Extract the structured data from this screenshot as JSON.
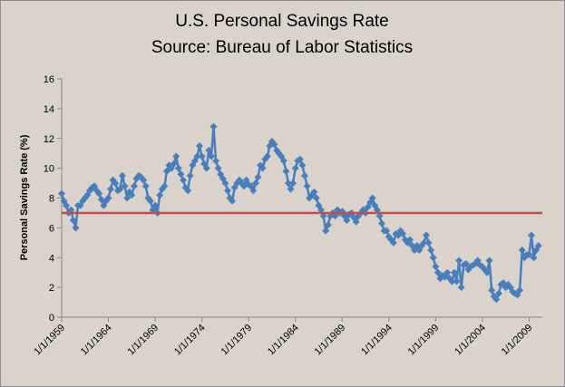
{
  "chart_data": {
    "type": "line",
    "title": [
      "U.S. Personal Savings Rate",
      "Source: Bureau of Labor Statistics"
    ],
    "y_label": "Personal Savings  Rate (%)",
    "ylim": [
      0,
      16
    ],
    "yticks": [
      0,
      2,
      4,
      6,
      8,
      10,
      12,
      14,
      16
    ],
    "xlim": [
      "1/1/1959",
      "6/1/2010"
    ],
    "xticks": [
      "1/1/1959",
      "1/1/1964",
      "1/1/1969",
      "1/1/1974",
      "1/1/1979",
      "1/1/1984",
      "1/1/1989",
      "1/1/1994",
      "1/1/1999",
      "1/1/2004",
      "1/1/2009"
    ],
    "reference_line": {
      "value": 7,
      "color": "#c0504d"
    },
    "x": [
      "1/1/1959",
      "4/1/1959",
      "7/1/1959",
      "10/1/1959",
      "1/1/1960",
      "4/1/1960",
      "7/1/1960",
      "10/1/1960",
      "1/1/1961",
      "4/1/1961",
      "7/1/1961",
      "10/1/1961",
      "1/1/1962",
      "4/1/1962",
      "7/1/1962",
      "10/1/1962",
      "1/1/1963",
      "4/1/1963",
      "7/1/1963",
      "10/1/1963",
      "1/1/1964",
      "4/1/1964",
      "7/1/1964",
      "10/1/1964",
      "1/1/1965",
      "4/1/1965",
      "7/1/1965",
      "10/1/1965",
      "1/1/1966",
      "4/1/1966",
      "7/1/1966",
      "10/1/1966",
      "1/1/1967",
      "4/1/1967",
      "7/1/1967",
      "10/1/1967",
      "1/1/1968",
      "4/1/1968",
      "7/1/1968",
      "10/1/1968",
      "1/1/1969",
      "4/1/1969",
      "7/1/1969",
      "10/1/1969",
      "1/1/1970",
      "4/1/1970",
      "7/1/1970",
      "10/1/1970",
      "1/1/1971",
      "4/1/1971",
      "7/1/1971",
      "10/1/1971",
      "1/1/1972",
      "4/1/1972",
      "7/1/1972",
      "10/1/1972",
      "1/1/1973",
      "4/1/1973",
      "7/1/1973",
      "10/1/1973",
      "1/1/1974",
      "4/1/1974",
      "7/1/1974",
      "10/1/1974",
      "1/1/1975",
      "4/1/1975",
      "7/1/1975",
      "10/1/1975",
      "1/1/1976",
      "4/1/1976",
      "7/1/1976",
      "10/1/1976",
      "1/1/1977",
      "4/1/1977",
      "7/1/1977",
      "10/1/1977",
      "1/1/1978",
      "4/1/1978",
      "7/1/1978",
      "10/1/1978",
      "1/1/1979",
      "4/1/1979",
      "7/1/1979",
      "10/1/1979",
      "1/1/1980",
      "4/1/1980",
      "7/1/1980",
      "10/1/1980",
      "1/1/1981",
      "4/1/1981",
      "7/1/1981",
      "10/1/1981",
      "1/1/1982",
      "4/1/1982",
      "7/1/1982",
      "10/1/1982",
      "1/1/1983",
      "4/1/1983",
      "7/1/1983",
      "10/1/1983",
      "1/1/1984",
      "4/1/1984",
      "7/1/1984",
      "10/1/1984",
      "1/1/1985",
      "4/1/1985",
      "7/1/1985",
      "10/1/1985",
      "1/1/1986",
      "4/1/1986",
      "7/1/1986",
      "10/1/1986",
      "1/1/1987",
      "4/1/1987",
      "7/1/1987",
      "10/1/1987",
      "1/1/1988",
      "4/1/1988",
      "7/1/1988",
      "10/1/1988",
      "1/1/1989",
      "4/1/1989",
      "7/1/1989",
      "10/1/1989",
      "1/1/1990",
      "4/1/1990",
      "7/1/1990",
      "10/1/1990",
      "1/1/1991",
      "4/1/1991",
      "7/1/1991",
      "10/1/1991",
      "1/1/1992",
      "4/1/1992",
      "7/1/1992",
      "10/1/1992",
      "1/1/1993",
      "4/1/1993",
      "7/1/1993",
      "10/1/1993",
      "1/1/1994",
      "4/1/1994",
      "7/1/1994",
      "10/1/1994",
      "1/1/1995",
      "4/1/1995",
      "7/1/1995",
      "10/1/1995",
      "1/1/1996",
      "4/1/1996",
      "7/1/1996",
      "10/1/1996",
      "1/1/1997",
      "4/1/1997",
      "7/1/1997",
      "10/1/1997",
      "1/1/1998",
      "4/1/1998",
      "7/1/1998",
      "10/1/1998",
      "1/1/1999",
      "4/1/1999",
      "7/1/1999",
      "10/1/1999",
      "1/1/2000",
      "4/1/2000",
      "7/1/2000",
      "10/1/2000",
      "1/1/2001",
      "4/1/2001",
      "7/1/2001",
      "10/1/2001",
      "1/1/2002",
      "4/1/2002",
      "7/1/2002",
      "10/1/2002",
      "1/1/2003",
      "4/1/2003",
      "7/1/2003",
      "10/1/2003",
      "1/1/2004",
      "4/1/2004",
      "7/1/2004",
      "10/1/2004",
      "1/1/2005",
      "4/1/2005",
      "7/1/2005",
      "10/1/2005",
      "1/1/2006",
      "4/1/2006",
      "7/1/2006",
      "10/1/2006",
      "1/1/2007",
      "4/1/2007",
      "7/1/2007",
      "10/1/2007",
      "1/1/2008",
      "4/1/2008",
      "7/1/2008",
      "10/1/2008",
      "1/1/2009",
      "4/1/2009",
      "7/1/2009",
      "10/1/2009",
      "1/1/2010"
    ],
    "series": [
      {
        "color": "#4a7ebb",
        "values": [
          8.3,
          7.8,
          7.5,
          7.0,
          7.2,
          6.5,
          6.0,
          7.5,
          7.5,
          7.8,
          8.0,
          8.2,
          8.5,
          8.7,
          8.8,
          8.5,
          8.3,
          7.9,
          7.5,
          7.8,
          8.0,
          8.6,
          9.2,
          9.0,
          8.5,
          8.6,
          9.5,
          8.8,
          8.0,
          8.4,
          8.2,
          8.8,
          9.3,
          9.5,
          9.4,
          9.2,
          8.8,
          8.0,
          7.8,
          7.2,
          7.5,
          7.0,
          8.2,
          8.6,
          8.8,
          9.8,
          10.2,
          10.0,
          10.3,
          10.8,
          10.0,
          9.6,
          9.2,
          8.7,
          8.5,
          9.5,
          10.2,
          10.5,
          10.8,
          11.5,
          10.8,
          10.3,
          10.0,
          11.2,
          10.8,
          12.8,
          10.5,
          10.0,
          9.6,
          9.3,
          9.0,
          8.5,
          8.0,
          7.8,
          8.7,
          9.0,
          9.2,
          9.0,
          8.8,
          9.2,
          8.9,
          8.8,
          8.5,
          9.0,
          9.4,
          10.2,
          10.0,
          10.6,
          10.8,
          11.5,
          11.8,
          11.6,
          11.2,
          11.0,
          10.8,
          10.5,
          9.8,
          9.0,
          8.6,
          9.0,
          10.0,
          10.5,
          10.6,
          10.2,
          9.5,
          8.8,
          8.0,
          8.2,
          8.4,
          8.0,
          7.5,
          7.2,
          6.8,
          5.8,
          6.2,
          6.8,
          7.0,
          6.8,
          7.2,
          7.0,
          7.1,
          6.8,
          6.5,
          6.9,
          7.0,
          6.7,
          6.4,
          6.8,
          7.0,
          7.2,
          7.0,
          7.4,
          7.7,
          8.0,
          7.5,
          7.2,
          6.8,
          6.3,
          5.8,
          5.8,
          5.4,
          5.2,
          5.0,
          5.6,
          5.5,
          5.8,
          5.6,
          5.2,
          5.0,
          5.2,
          4.8,
          4.5,
          4.8,
          4.5,
          4.8,
          5.0,
          5.5,
          5.0,
          4.5,
          4.0,
          3.4,
          3.0,
          2.6,
          2.8,
          2.7,
          3.0,
          2.6,
          2.4,
          3.0,
          2.4,
          3.8,
          2.0,
          3.5,
          3.6,
          3.2,
          3.4,
          3.5,
          3.6,
          3.8,
          3.5,
          3.4,
          3.2,
          3.0,
          3.8,
          1.8,
          1.4,
          1.2,
          1.6,
          2.2,
          2.3,
          2.0,
          2.2,
          2.0,
          1.7,
          1.6,
          1.5,
          1.8,
          4.5,
          4.0,
          4.2,
          4.2,
          5.5,
          4.0,
          4.5,
          4.8
        ]
      }
    ]
  }
}
